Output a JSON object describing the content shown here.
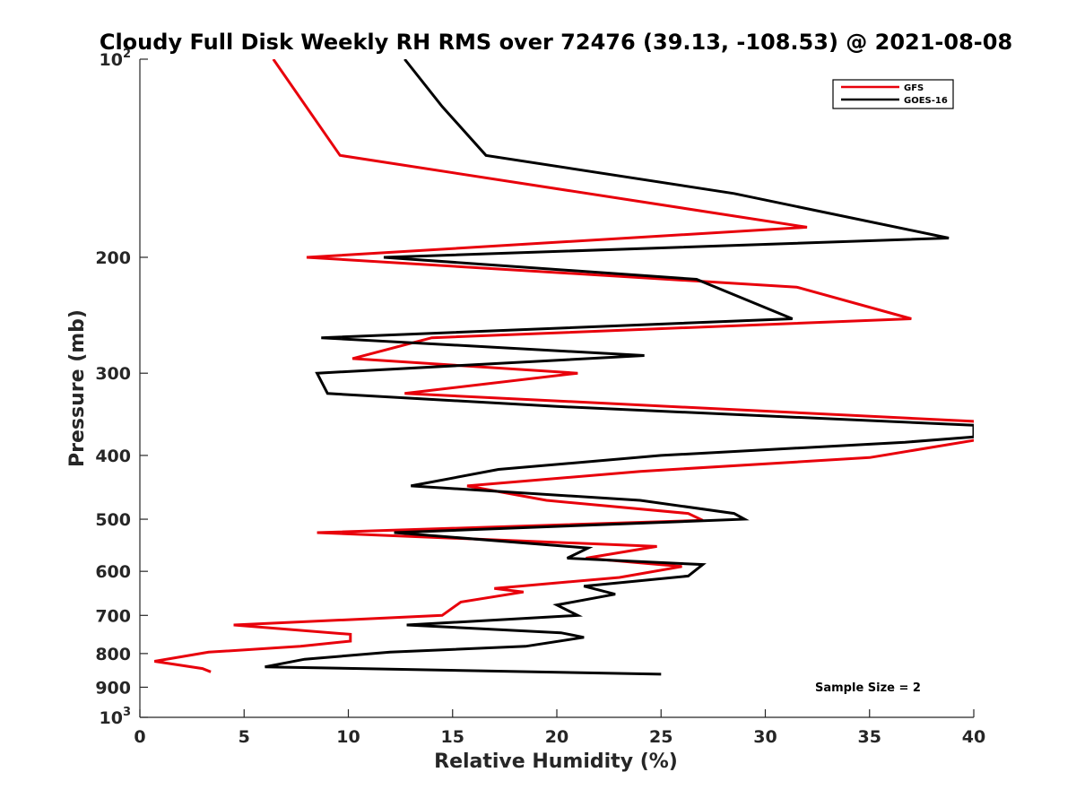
{
  "chart_data": {
    "type": "line",
    "title": "Cloudy Full Disk Weekly RH RMS over 72476 (39.13, -108.53) @ 2021-08-08",
    "xlabel": "Relative Humidity (%)",
    "ylabel": "Pressure (mb)",
    "xlim": [
      0,
      40
    ],
    "ylim": [
      100,
      1000
    ],
    "y_scale": "log",
    "y_reversed": true,
    "x_ticks": [
      0,
      5,
      10,
      15,
      20,
      25,
      30,
      35,
      40
    ],
    "x_tick_labels": [
      "0",
      "5",
      "10",
      "15",
      "20",
      "25",
      "30",
      "35",
      "40"
    ],
    "y_ticks": [
      {
        "value": 100,
        "base": "10",
        "exp": "2"
      },
      {
        "value": 200,
        "label": "200"
      },
      {
        "value": 300,
        "label": "300"
      },
      {
        "value": 400,
        "label": "400"
      },
      {
        "value": 500,
        "label": "500"
      },
      {
        "value": 600,
        "label": "600"
      },
      {
        "value": 700,
        "label": "700"
      },
      {
        "value": 800,
        "label": "800"
      },
      {
        "value": 900,
        "label": "900"
      },
      {
        "value": 1000,
        "base": "10",
        "exp": "3"
      }
    ],
    "grid": false,
    "legend_position": "top-right",
    "annotation": "Sample Size = 2",
    "series": [
      {
        "name": "GFS",
        "color": "#e8000b",
        "points": [
          [
            6.4,
            100
          ],
          [
            9.6,
            140
          ],
          [
            32.0,
            180
          ],
          [
            8.0,
            200
          ],
          [
            31.5,
            222
          ],
          [
            37.0,
            248
          ],
          [
            14.0,
            265
          ],
          [
            10.2,
            285
          ],
          [
            21.0,
            300
          ],
          [
            12.7,
            322
          ],
          [
            40.0,
            355
          ],
          [
            41.0,
            375
          ],
          [
            35.0,
            403
          ],
          [
            24.0,
            423
          ],
          [
            15.7,
            445
          ],
          [
            19.5,
            468
          ],
          [
            26.3,
            490
          ],
          [
            27.0,
            502
          ],
          [
            8.5,
            524
          ],
          [
            24.8,
            550
          ],
          [
            21.4,
            573
          ],
          [
            26.0,
            590
          ],
          [
            23.0,
            613
          ],
          [
            17.0,
            637
          ],
          [
            18.4,
            645
          ],
          [
            15.4,
            668
          ],
          [
            14.5,
            700
          ],
          [
            4.5,
            724
          ],
          [
            10.1,
            748
          ],
          [
            10.1,
            766
          ],
          [
            7.7,
            780
          ],
          [
            3.3,
            796
          ],
          [
            0.7,
            822
          ],
          [
            3.0,
            843
          ],
          [
            3.4,
            853
          ]
        ]
      },
      {
        "name": "GOES-16",
        "color": "#000000",
        "points": [
          [
            12.7,
            100
          ],
          [
            14.5,
            118
          ],
          [
            16.6,
            140
          ],
          [
            28.5,
            160
          ],
          [
            38.8,
            187
          ],
          [
            11.7,
            200
          ],
          [
            26.7,
            216
          ],
          [
            31.3,
            248
          ],
          [
            8.7,
            265
          ],
          [
            24.2,
            282
          ],
          [
            8.5,
            300
          ],
          [
            9.0,
            322
          ],
          [
            20.0,
            337
          ],
          [
            40.0,
            360
          ],
          [
            40.0,
            375
          ],
          [
            36.7,
            382
          ],
          [
            25.0,
            400
          ],
          [
            17.2,
            420
          ],
          [
            13.0,
            445
          ],
          [
            24.0,
            468
          ],
          [
            28.5,
            490
          ],
          [
            29.0,
            500
          ],
          [
            12.2,
            524
          ],
          [
            21.5,
            553
          ],
          [
            20.5,
            573
          ],
          [
            27.0,
            586
          ],
          [
            26.3,
            610
          ],
          [
            21.3,
            632
          ],
          [
            22.8,
            650
          ],
          [
            20.0,
            675
          ],
          [
            21.0,
            700
          ],
          [
            12.8,
            724
          ],
          [
            20.2,
            744
          ],
          [
            21.3,
            756
          ],
          [
            18.5,
            780
          ],
          [
            12.0,
            796
          ],
          [
            7.9,
            816
          ],
          [
            6.0,
            838
          ],
          [
            25.0,
            860
          ]
        ]
      }
    ]
  }
}
